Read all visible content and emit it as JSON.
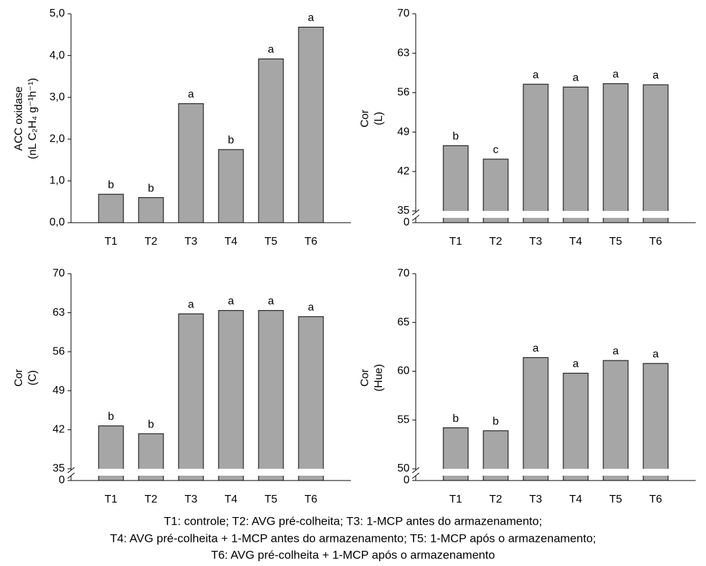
{
  "chart_data": [
    {
      "type": "bar",
      "ylabel": [
        "ACC oxidase",
        "(nL C₂H₄ g⁻¹h⁻¹)"
      ],
      "categories": [
        "T1",
        "T2",
        "T3",
        "T4",
        "T5",
        "T6"
      ],
      "values": [
        0.68,
        0.6,
        2.85,
        1.75,
        3.92,
        4.68
      ],
      "letters": [
        "b",
        "b",
        "a",
        "b",
        "a",
        "a"
      ],
      "color": "#a6a6a6",
      "ylim": [
        0,
        5
      ],
      "yticks": [
        {
          "value": 0,
          "label": "0,0"
        },
        {
          "value": 1,
          "label": "1,0"
        },
        {
          "value": 2,
          "label": "2,0"
        },
        {
          "value": 3,
          "label": "3,0"
        },
        {
          "value": 4,
          "label": "4,0"
        },
        {
          "value": 5,
          "label": "5,0"
        }
      ]
    },
    {
      "type": "bar",
      "ylabel": [
        "Cor",
        "(L)"
      ],
      "categories": [
        "T1",
        "T2",
        "T3",
        "T4",
        "T5",
        "T6"
      ],
      "values": [
        46.6,
        44.2,
        57.5,
        57.0,
        57.6,
        57.4
      ],
      "letters": [
        "b",
        "c",
        "a",
        "a",
        "a",
        "a"
      ],
      "color": "#a6a6a6",
      "ylim": [
        0,
        70
      ],
      "axis_break": [
        0,
        35
      ],
      "yticks": [
        0,
        35,
        42,
        49,
        56,
        63,
        70
      ]
    },
    {
      "type": "bar",
      "ylabel": [
        "Cor",
        "(C)"
      ],
      "categories": [
        "T1",
        "T2",
        "T3",
        "T4",
        "T5",
        "T6"
      ],
      "values": [
        42.7,
        41.3,
        62.8,
        63.4,
        63.4,
        62.3
      ],
      "letters": [
        "b",
        "b",
        "a",
        "a",
        "a",
        "a"
      ],
      "color": "#a6a6a6",
      "ylim": [
        0,
        70
      ],
      "axis_break": [
        0,
        35
      ],
      "yticks": [
        0,
        35,
        42,
        49,
        56,
        63,
        70
      ]
    },
    {
      "type": "bar",
      "ylabel": [
        "Cor",
        "(Hue)"
      ],
      "categories": [
        "T1",
        "T2",
        "T3",
        "T4",
        "T5",
        "T6"
      ],
      "values": [
        54.2,
        53.9,
        61.4,
        59.8,
        61.1,
        60.8
      ],
      "letters": [
        "b",
        "b",
        "a",
        "a",
        "a",
        "a"
      ],
      "color": "#a6a6a6",
      "ylim": [
        0,
        70
      ],
      "axis_break": [
        0,
        50
      ],
      "yticks": [
        0,
        50,
        55,
        60,
        65,
        70
      ]
    }
  ],
  "caption": [
    "T1: controle;    T2: AVG pré-colheita;   T3: 1-MCP antes do armazenamento;",
    "T4: AVG pré-colheita + 1-MCP antes do armazenamento;    T5: 1-MCP após o armazenamento;",
    "T6: AVG pré-colheita + 1-MCP após o armazenamento"
  ]
}
